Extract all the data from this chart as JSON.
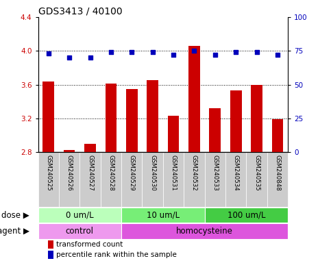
{
  "title": "GDS3413 / 40100",
  "samples": [
    "GSM240525",
    "GSM240526",
    "GSM240527",
    "GSM240528",
    "GSM240529",
    "GSM240530",
    "GSM240531",
    "GSM240532",
    "GSM240533",
    "GSM240534",
    "GSM240535",
    "GSM240848"
  ],
  "transformed_count": [
    3.64,
    2.83,
    2.9,
    3.61,
    3.55,
    3.65,
    3.23,
    4.06,
    3.32,
    3.53,
    3.6,
    3.19
  ],
  "percentile_rank": [
    73,
    70,
    70,
    74,
    74,
    74,
    72,
    75,
    72,
    74,
    74,
    72
  ],
  "ymin": 2.8,
  "ymax": 4.4,
  "ylim_right": [
    0,
    100
  ],
  "yticks_left": [
    2.8,
    3.2,
    3.6,
    4.0,
    4.4
  ],
  "yticks_right": [
    0,
    25,
    50,
    75,
    100
  ],
  "bar_color": "#cc0000",
  "dot_color": "#0000bb",
  "grid_lines": [
    3.2,
    3.6,
    4.0
  ],
  "dose_groups": [
    {
      "label": "0 um/L",
      "start": 0,
      "end": 4,
      "color": "#bbffbb"
    },
    {
      "label": "10 um/L",
      "start": 4,
      "end": 8,
      "color": "#77ee77"
    },
    {
      "label": "100 um/L",
      "start": 8,
      "end": 12,
      "color": "#44cc44"
    }
  ],
  "agent_groups": [
    {
      "label": "control",
      "start": 0,
      "end": 4,
      "color": "#ee99ee"
    },
    {
      "label": "homocysteine",
      "start": 4,
      "end": 12,
      "color": "#dd55dd"
    }
  ],
  "dose_label": "dose",
  "agent_label": "agent",
  "legend_bar_label": "transformed count",
  "legend_dot_label": "percentile rank within the sample",
  "title_fontsize": 10,
  "tick_fontsize": 7.5,
  "label_fontsize": 8.5,
  "sample_fontsize": 6.2,
  "legend_fontsize": 7.5
}
